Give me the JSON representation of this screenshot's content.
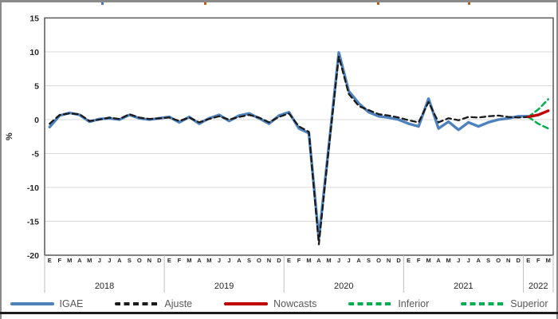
{
  "chart_data": {
    "type": "line",
    "title": "",
    "ylabel": "%",
    "ylim": [
      -20,
      15
    ],
    "yticks": [
      15,
      10,
      5,
      0,
      -5,
      -10,
      -15,
      -20
    ],
    "grid": true,
    "legend_position": "bottom",
    "x_axis": {
      "month_letters": [
        "E",
        "F",
        "M",
        "A",
        "M",
        "J",
        "J",
        "A",
        "S",
        "O",
        "N",
        "D"
      ],
      "year_groups": [
        {
          "year": "2018",
          "months": 12
        },
        {
          "year": "2019",
          "months": 12
        },
        {
          "year": "2020",
          "months": 12
        },
        {
          "year": "2021",
          "months": 12
        },
        {
          "year": "2022",
          "months": 3
        }
      ]
    },
    "series": [
      {
        "name": "IGAE",
        "color": "#4F81BD",
        "style": "solid",
        "width": 3.4,
        "start_index": 0,
        "values": [
          -1.1,
          0.6,
          1.0,
          0.7,
          -0.3,
          0.1,
          0.2,
          0.0,
          0.7,
          0.2,
          0.0,
          0.2,
          0.4,
          -0.4,
          0.4,
          -0.6,
          0.2,
          0.7,
          -0.2,
          0.6,
          0.9,
          0.2,
          -0.6,
          0.6,
          1.1,
          -1.3,
          -2.0,
          -17.5,
          -3.9,
          9.9,
          4.2,
          2.4,
          1.1,
          0.5,
          0.3,
          0.0,
          -0.6,
          -1.0,
          3.1,
          -1.3,
          -0.3,
          -1.5,
          -0.4,
          -1.0,
          -0.4,
          0.0,
          0.2,
          0.5,
          0.5
        ]
      },
      {
        "name": "Ajuste",
        "color": "#1A1A1A",
        "style": "dashed",
        "width": 2.3,
        "start_index": 0,
        "values": [
          -0.6,
          0.7,
          0.9,
          0.8,
          -0.2,
          0.0,
          0.3,
          0.1,
          0.8,
          0.3,
          0.1,
          0.2,
          0.3,
          -0.2,
          0.3,
          -0.4,
          0.1,
          0.5,
          0.0,
          0.4,
          0.7,
          0.3,
          -0.4,
          0.4,
          0.9,
          -1.0,
          -1.8,
          -18.4,
          -4.2,
          9.3,
          3.8,
          2.0,
          1.4,
          0.8,
          0.6,
          0.3,
          -0.1,
          -0.4,
          2.6,
          -0.4,
          0.2,
          -0.1,
          0.4,
          0.3,
          0.5,
          0.6,
          0.4,
          0.3,
          0.4
        ]
      },
      {
        "name": "Nowcasts",
        "color": "#C00000",
        "style": "solid",
        "width": 3.4,
        "start_index": 48,
        "values": [
          0.4,
          0.7,
          1.3
        ]
      },
      {
        "name": "Inferior",
        "color": "#00B050",
        "style": "dashed",
        "width": 2.5,
        "start_index": 48,
        "values": [
          0.4,
          -0.6,
          -1.3
        ]
      },
      {
        "name": "Superior",
        "color": "#00B050",
        "style": "dashed",
        "width": 2.5,
        "start_index": 48,
        "values": [
          0.4,
          1.5,
          3.0
        ]
      }
    ],
    "axis_colors": {
      "frame": "#595959",
      "gridline": "#D9D9D9",
      "separator": "#BFBFBF",
      "tick_text": "#262626"
    }
  }
}
